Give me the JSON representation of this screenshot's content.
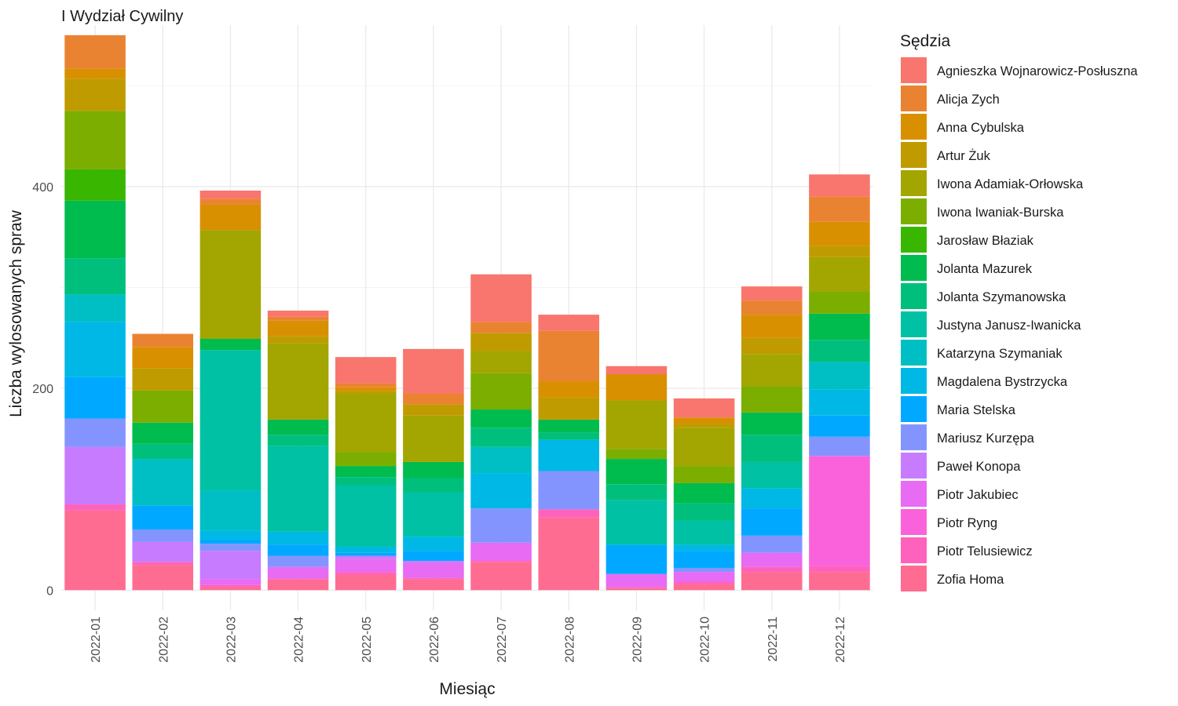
{
  "chart_data": {
    "type": "bar",
    "stacked": true,
    "title": "I Wydział Cywilny",
    "xlabel": "Miesiąc",
    "ylabel": "Liczba wylosowanych spraw",
    "ylim": [
      -20,
      560
    ],
    "yticks": [
      0,
      200,
      400
    ],
    "legend_title": "Sędzia",
    "legend_position": "right",
    "grid": true,
    "categories": [
      "2022-01",
      "2022-02",
      "2022-03",
      "2022-04",
      "2022-05",
      "2022-06",
      "2022-07",
      "2022-08",
      "2022-09",
      "2022-10",
      "2022-11",
      "2022-12"
    ],
    "series": [
      {
        "name": "Agnieszka Wojnarowicz-Posłuszna",
        "color": "#F8766D",
        "values": [
          0,
          0,
          8,
          6,
          26,
          44,
          47,
          16,
          8,
          19,
          14,
          22
        ]
      },
      {
        "name": "Alicja Zych",
        "color": "#EA8331",
        "values": [
          33,
          13,
          6,
          4,
          4,
          11,
          11,
          50,
          0,
          0,
          14,
          25
        ]
      },
      {
        "name": "Anna Cybulska",
        "color": "#D89000",
        "values": [
          10,
          21,
          25,
          15,
          4,
          0,
          0,
          16,
          26,
          6,
          23,
          24
        ]
      },
      {
        "name": "Artur Żuk",
        "color": "#C09B00",
        "values": [
          32,
          22,
          0,
          7,
          2,
          11,
          18,
          22,
          0,
          4,
          16,
          11
        ]
      },
      {
        "name": "Iwona Adamiak-Orłowska",
        "color": "#A3A500",
        "values": [
          0,
          0,
          108,
          76,
          58,
          46,
          22,
          0,
          48,
          38,
          32,
          34
        ]
      },
      {
        "name": "Iwona Iwaniak-Burska",
        "color": "#7CAE00",
        "values": [
          58,
          32,
          0,
          0,
          14,
          0,
          36,
          0,
          10,
          17,
          26,
          22
        ]
      },
      {
        "name": "Jarosław Błaziak",
        "color": "#39B600",
        "values": [
          31,
          0,
          0,
          0,
          0,
          0,
          0,
          0,
          0,
          0,
          0,
          0
        ]
      },
      {
        "name": "Jolanta Mazurek",
        "color": "#00BB4E",
        "values": [
          57,
          21,
          11,
          15,
          11,
          16,
          18,
          13,
          25,
          20,
          22,
          26
        ]
      },
      {
        "name": "Jolanta Szymanowska",
        "color": "#00BF7D",
        "values": [
          36,
          15,
          0,
          11,
          8,
          14,
          19,
          7,
          16,
          17,
          27,
          22
        ]
      },
      {
        "name": "Justyna Janusz-Iwanicka",
        "color": "#00C1A3",
        "values": [
          0,
          0,
          139,
          85,
          61,
          44,
          0,
          0,
          44,
          24,
          26,
          0
        ]
      },
      {
        "name": "Katarzyna Szymaniak",
        "color": "#00BFC4",
        "values": [
          27,
          46,
          40,
          0,
          0,
          0,
          26,
          0,
          0,
          0,
          0,
          27
        ]
      },
      {
        "name": "Magdalena Bystrzycka",
        "color": "#00B8E5",
        "values": [
          55,
          0,
          9,
          13,
          6,
          14,
          35,
          31,
          0,
          6,
          20,
          26
        ]
      },
      {
        "name": "Maria Stelska",
        "color": "#00A9FF",
        "values": [
          41,
          24,
          4,
          11,
          3,
          10,
          0,
          0,
          29,
          17,
          27,
          21
        ]
      },
      {
        "name": "Mariusz Kurzępa",
        "color": "#8494FF",
        "values": [
          28,
          12,
          7,
          11,
          0,
          0,
          34,
          38,
          0,
          4,
          17,
          19
        ]
      },
      {
        "name": "Paweł Konopa",
        "color": "#C77CFF",
        "values": [
          57,
          20,
          28,
          0,
          3,
          2,
          0,
          0,
          0,
          0,
          0,
          0
        ]
      },
      {
        "name": "Piotr Jakubiec",
        "color": "#E76BF3",
        "values": [
          0,
          0,
          6,
          12,
          13,
          15,
          18,
          0,
          13,
          10,
          14,
          0
        ]
      },
      {
        "name": "Piotr Ryng",
        "color": "#FA62DB",
        "values": [
          0,
          0,
          0,
          0,
          0,
          0,
          0,
          0,
          0,
          0,
          0,
          109
        ]
      },
      {
        "name": "Piotr Telusiewicz",
        "color": "#FF62BC",
        "values": [
          6,
          3,
          2,
          0,
          3,
          1,
          1,
          8,
          1,
          2,
          5,
          6
        ]
      },
      {
        "name": "Zofia Homa",
        "color": "#FF6C91",
        "values": [
          79,
          25,
          3,
          11,
          15,
          11,
          28,
          72,
          2,
          6,
          18,
          18
        ]
      }
    ]
  }
}
